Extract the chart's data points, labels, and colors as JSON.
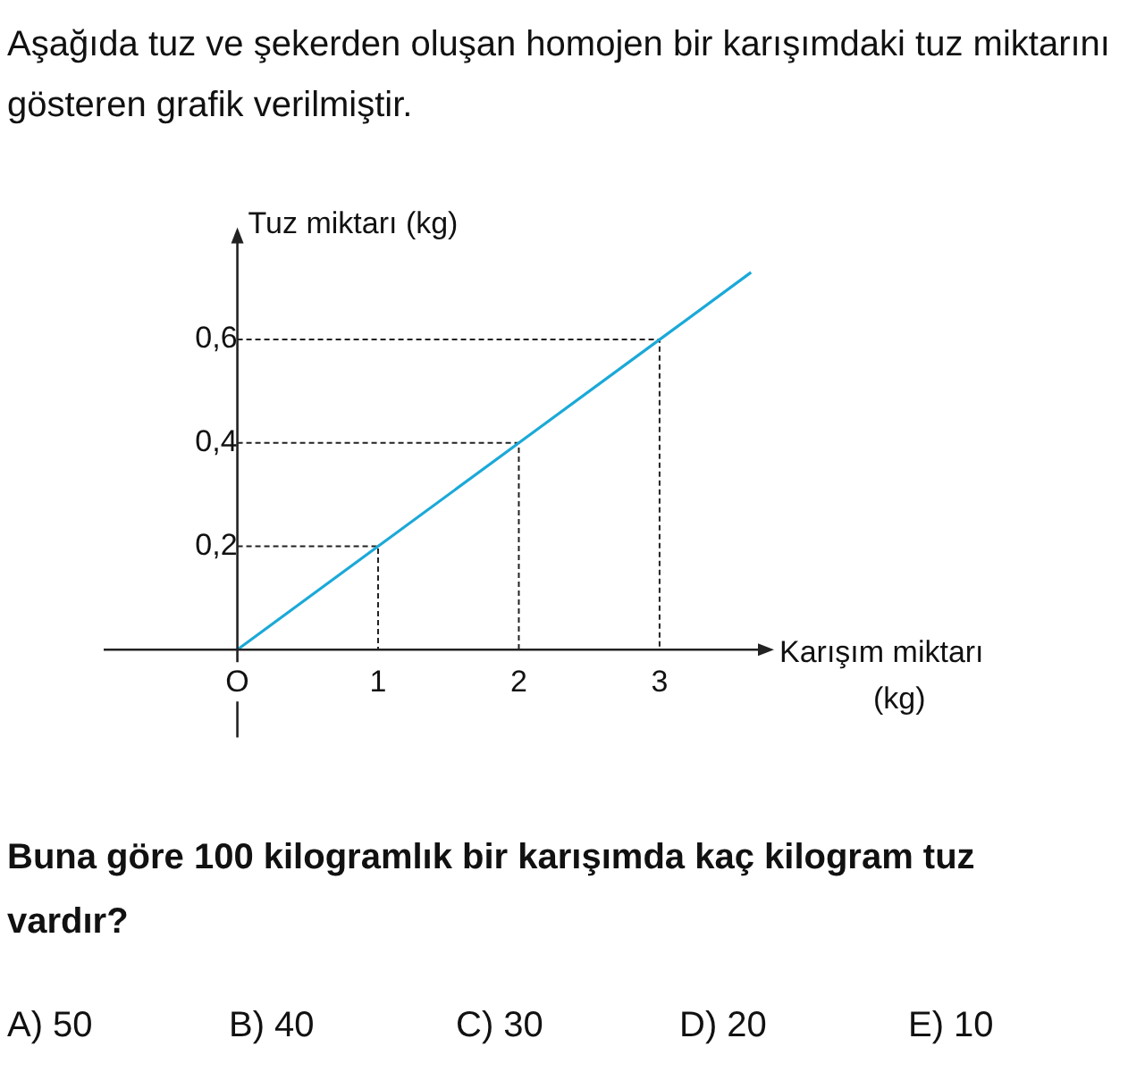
{
  "chart_data": {
    "type": "line",
    "title": "Aşağıda tuz ve şekerden oluşan homojen bir karışımdaki tuz miktarını gösteren grafik verilmiştir.",
    "xlabel": "Karışım miktarı (kg)",
    "ylabel": "Tuz miktarı (kg)",
    "x": [
      0,
      1,
      2,
      3,
      3.65
    ],
    "series": [
      {
        "color": "#1ba9d8",
        "values": [
          0,
          0.2,
          0.4,
          0.6,
          0.73
        ]
      },
      {
        "color": "#222222",
        "line_style": "dashed",
        "x": [
          0,
          1,
          1
        ],
        "values": [
          0.2,
          0.2,
          0
        ]
      },
      {
        "color": "#222222",
        "line_style": "dashed",
        "x": [
          0,
          2,
          2
        ],
        "values": [
          0.4,
          0.4,
          0
        ]
      },
      {
        "color": "#222222",
        "line_style": "dashed",
        "x": [
          0,
          3,
          3
        ],
        "values": [
          0.6,
          0.6,
          0
        ]
      }
    ],
    "xlim": [
      -0.95,
      3.75
    ],
    "ylim": [
      -0.17,
      0.8
    ],
    "xticks": [
      {
        "value": 0,
        "label": "O"
      },
      1,
      2,
      3
    ],
    "yticks": [
      {
        "value": 0.2,
        "label": "0,2"
      },
      {
        "value": 0.4,
        "label": "0,4"
      },
      {
        "value": 0.6,
        "label": "0,6"
      }
    ],
    "grid": false,
    "legend": false,
    "marker": "none",
    "line_style": "solid",
    "annotations": [
      "Buna göre 100 kilogramlık bir karışımda kaç kilogram tuz vardır?",
      "A) 50",
      "B) 40",
      "C) 30",
      "D) 20",
      "E) 10"
    ]
  }
}
